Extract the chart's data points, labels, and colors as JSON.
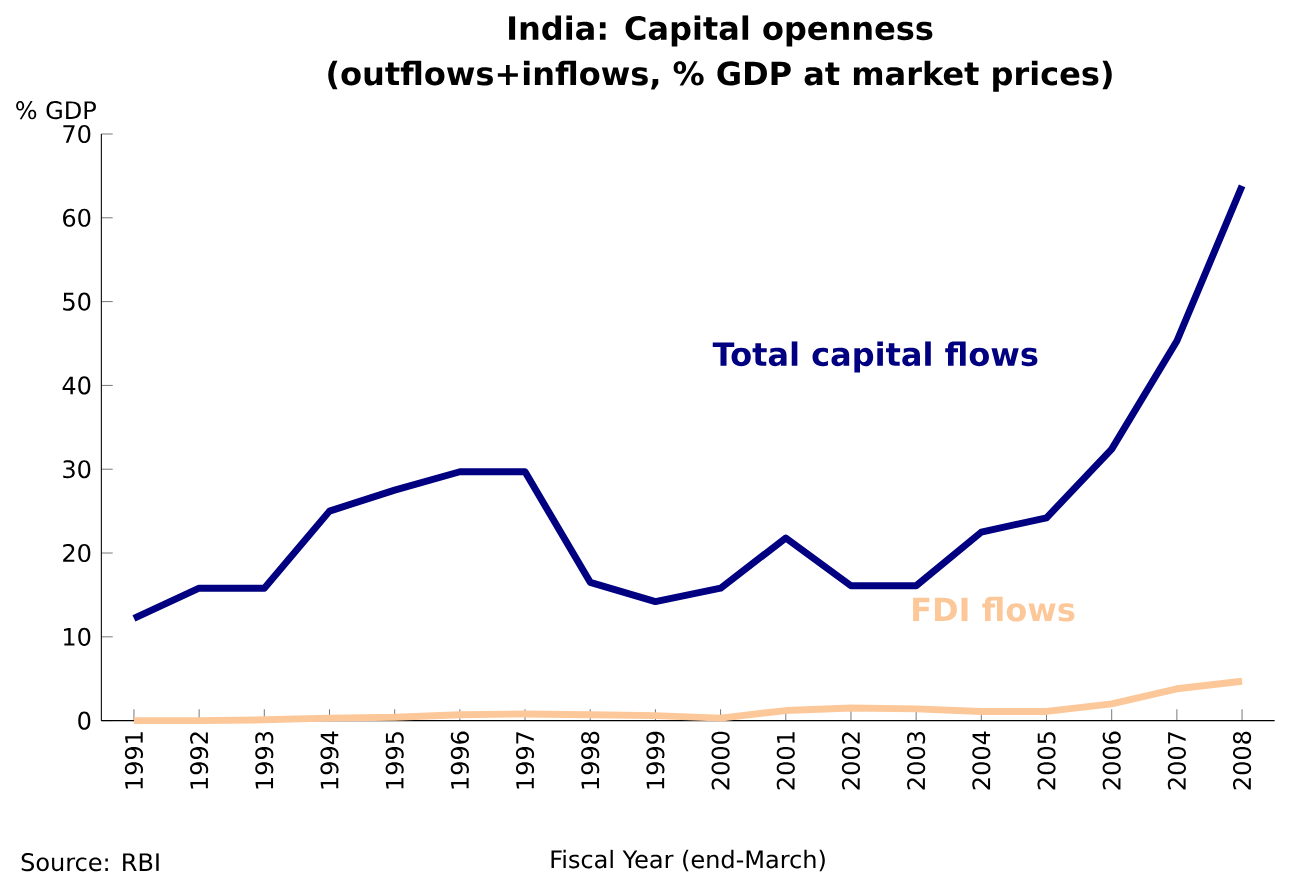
{
  "chart_data": {
    "type": "line",
    "title": "India: Capital openness",
    "subtitle": "(outflows+inflows, % GDP at market prices)",
    "ylabel": "% GDP",
    "xlabel": "Fiscal Year (end-March)",
    "annotations": [
      "Source: RBI"
    ],
    "categories": [
      "1991",
      "1992",
      "1993",
      "1994",
      "1995",
      "1996",
      "1997",
      "1998",
      "1999",
      "2000",
      "2001",
      "2002",
      "2003",
      "2004",
      "2005",
      "2006",
      "2007",
      "2008"
    ],
    "series": [
      {
        "name": "Total capital flows",
        "color": "#000080",
        "values": [
          12.2,
          15.8,
          15.8,
          25,
          27.5,
          29.7,
          29.7,
          16.5,
          14.2,
          15.8,
          21.8,
          16.1,
          16.1,
          22.5,
          24.2,
          32.4,
          45.3,
          63.8
        ]
      },
      {
        "name": "FDI flows",
        "color": "#fcc89a",
        "values": [
          0,
          0,
          0.1,
          0.3,
          0.4,
          0.7,
          0.8,
          0.7,
          0.6,
          0.3,
          1.2,
          1.5,
          1.4,
          1.1,
          1.1,
          2.0,
          3.8,
          4.7
        ]
      }
    ],
    "ylim": [
      0,
      70
    ],
    "yticks": [
      0,
      10,
      20,
      30,
      40,
      50,
      60,
      70
    ],
    "grid": false,
    "legend": false,
    "marker": "none",
    "line_style": "solid"
  }
}
